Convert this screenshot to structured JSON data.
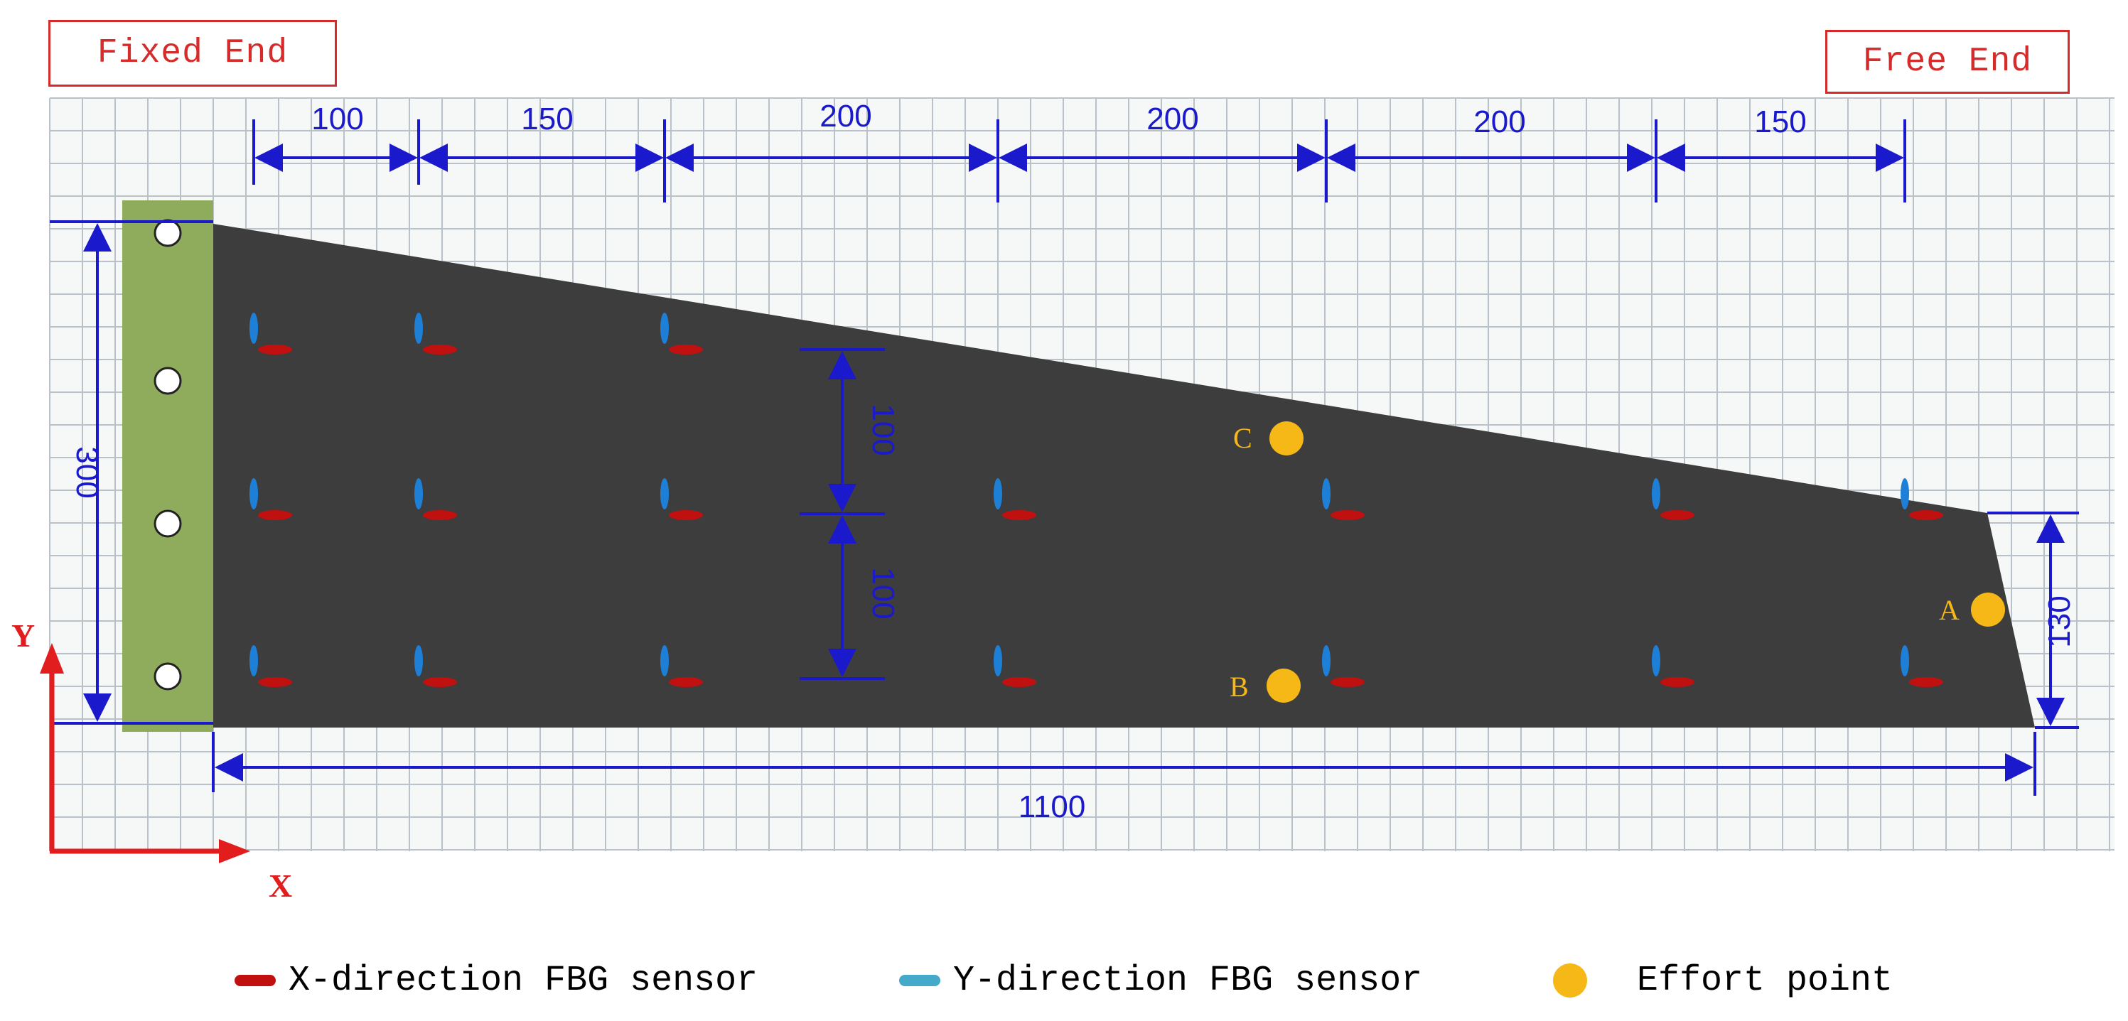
{
  "labels": {
    "fixed_end": "Fixed End",
    "free_end": "Free End"
  },
  "dimensions": {
    "top": [
      "100",
      "150",
      "200",
      "200",
      "200",
      "150"
    ],
    "height": "300",
    "spacing_upper": "100",
    "spacing_lower": "100",
    "tip_height": "130",
    "length": "1100"
  },
  "effort_points": {
    "A": "A",
    "B": "B",
    "C": "C"
  },
  "axes": {
    "x": "X",
    "y": "Y"
  },
  "legend": {
    "x_sensor": "X-direction FBG sensor",
    "y_sensor": "Y-direction FBG sensor",
    "effort_point": "Effort point"
  },
  "colors": {
    "plate": "#3d3d3d",
    "clamp": "#8fac5c",
    "x_sensor": "#c01010",
    "y_sensor": "#1e7fd6",
    "legend_y_sensor": "#45a9c9",
    "effort_point": "#f5b816",
    "dimension": "#1a1acc",
    "axis": "#e21d1d",
    "label_border": "#d62b2b",
    "grid": "#b9c2c8"
  }
}
